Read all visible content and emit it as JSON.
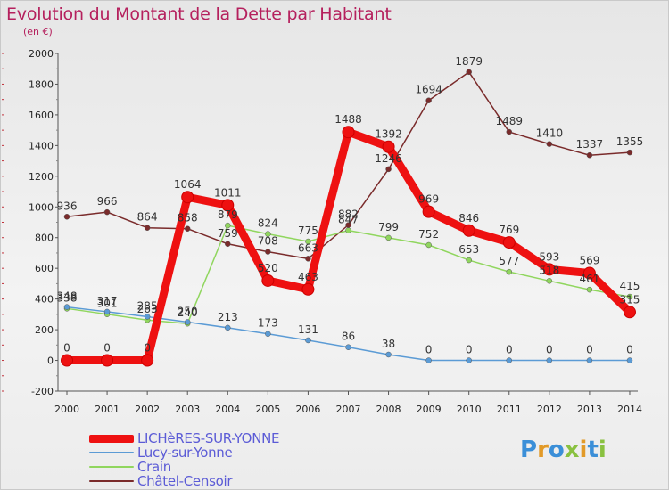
{
  "title": "Evolution du Montant de la Dette par Habitant",
  "unit": "(en €)",
  "logo": "Proxiti",
  "chart_data": {
    "type": "line",
    "title": "Evolution du Montant de la Dette par Habitant",
    "subtitle": "(en €)",
    "xlabel": "",
    "ylabel": "",
    "x": [
      "2000",
      "2001",
      "2002",
      "2003",
      "2004",
      "2005",
      "2006",
      "2007",
      "2008",
      "2009",
      "2010",
      "2011",
      "2012",
      "2013",
      "2014"
    ],
    "ylim": [
      -200,
      2000
    ],
    "yticks": [
      "-200",
      "0",
      "200",
      "400",
      "600",
      "800",
      "1000",
      "1200",
      "1400",
      "1600",
      "1800",
      "2000"
    ],
    "grid": false,
    "legend_position": "bottom-left",
    "series": [
      {
        "name": "Châtel-Censoir",
        "color": "#7a2b2b",
        "values": [
          936,
          966,
          864,
          858,
          759,
          708,
          663,
          882,
          1246,
          1694,
          1879,
          1489,
          1410,
          1337,
          1355
        ]
      },
      {
        "name": "Crain",
        "color": "#90d65e",
        "values": [
          338,
          301,
          263,
          240,
          879,
          824,
          775,
          847,
          799,
          752,
          653,
          577,
          518,
          461,
          415
        ]
      },
      {
        "name": "Lucy-sur-Yonne",
        "color": "#5b9bd5",
        "values": [
          348,
          317,
          285,
          250,
          213,
          173,
          131,
          86,
          38,
          0,
          0,
          0,
          0,
          0,
          0
        ]
      },
      {
        "name": "LICHèRES-SUR-YONNE",
        "color": "#ee1111",
        "values": [
          0,
          0,
          0,
          1064,
          1011,
          520,
          463,
          1488,
          1392,
          969,
          846,
          769,
          593,
          569,
          315
        ]
      }
    ],
    "data_labels": [
      [
        "936",
        "966",
        "864",
        "858",
        "759",
        "708",
        "663",
        "882",
        "1246",
        "1694",
        "1879",
        "1489",
        "1410",
        "1337",
        "1355"
      ],
      [
        "338",
        "301",
        "263",
        "240",
        "879",
        "824",
        "775",
        "847",
        "799",
        "752",
        "653",
        "577",
        "518",
        "461",
        "415"
      ],
      [
        "348",
        "317",
        "285",
        "250",
        "213",
        "173",
        "131",
        "86",
        "38",
        "0",
        "0",
        "0",
        "0",
        "0",
        "0"
      ],
      [
        "0",
        "0",
        "0",
        "1064",
        "1011",
        "520",
        "463",
        "1488",
        "1392",
        "969",
        "846",
        "769",
        "593",
        "569",
        "315"
      ]
    ],
    "legend_order": [
      "LICHèRES-SUR-YONNE",
      "Lucy-sur-Yonne",
      "Crain",
      "Châtel-Censoir"
    ]
  }
}
